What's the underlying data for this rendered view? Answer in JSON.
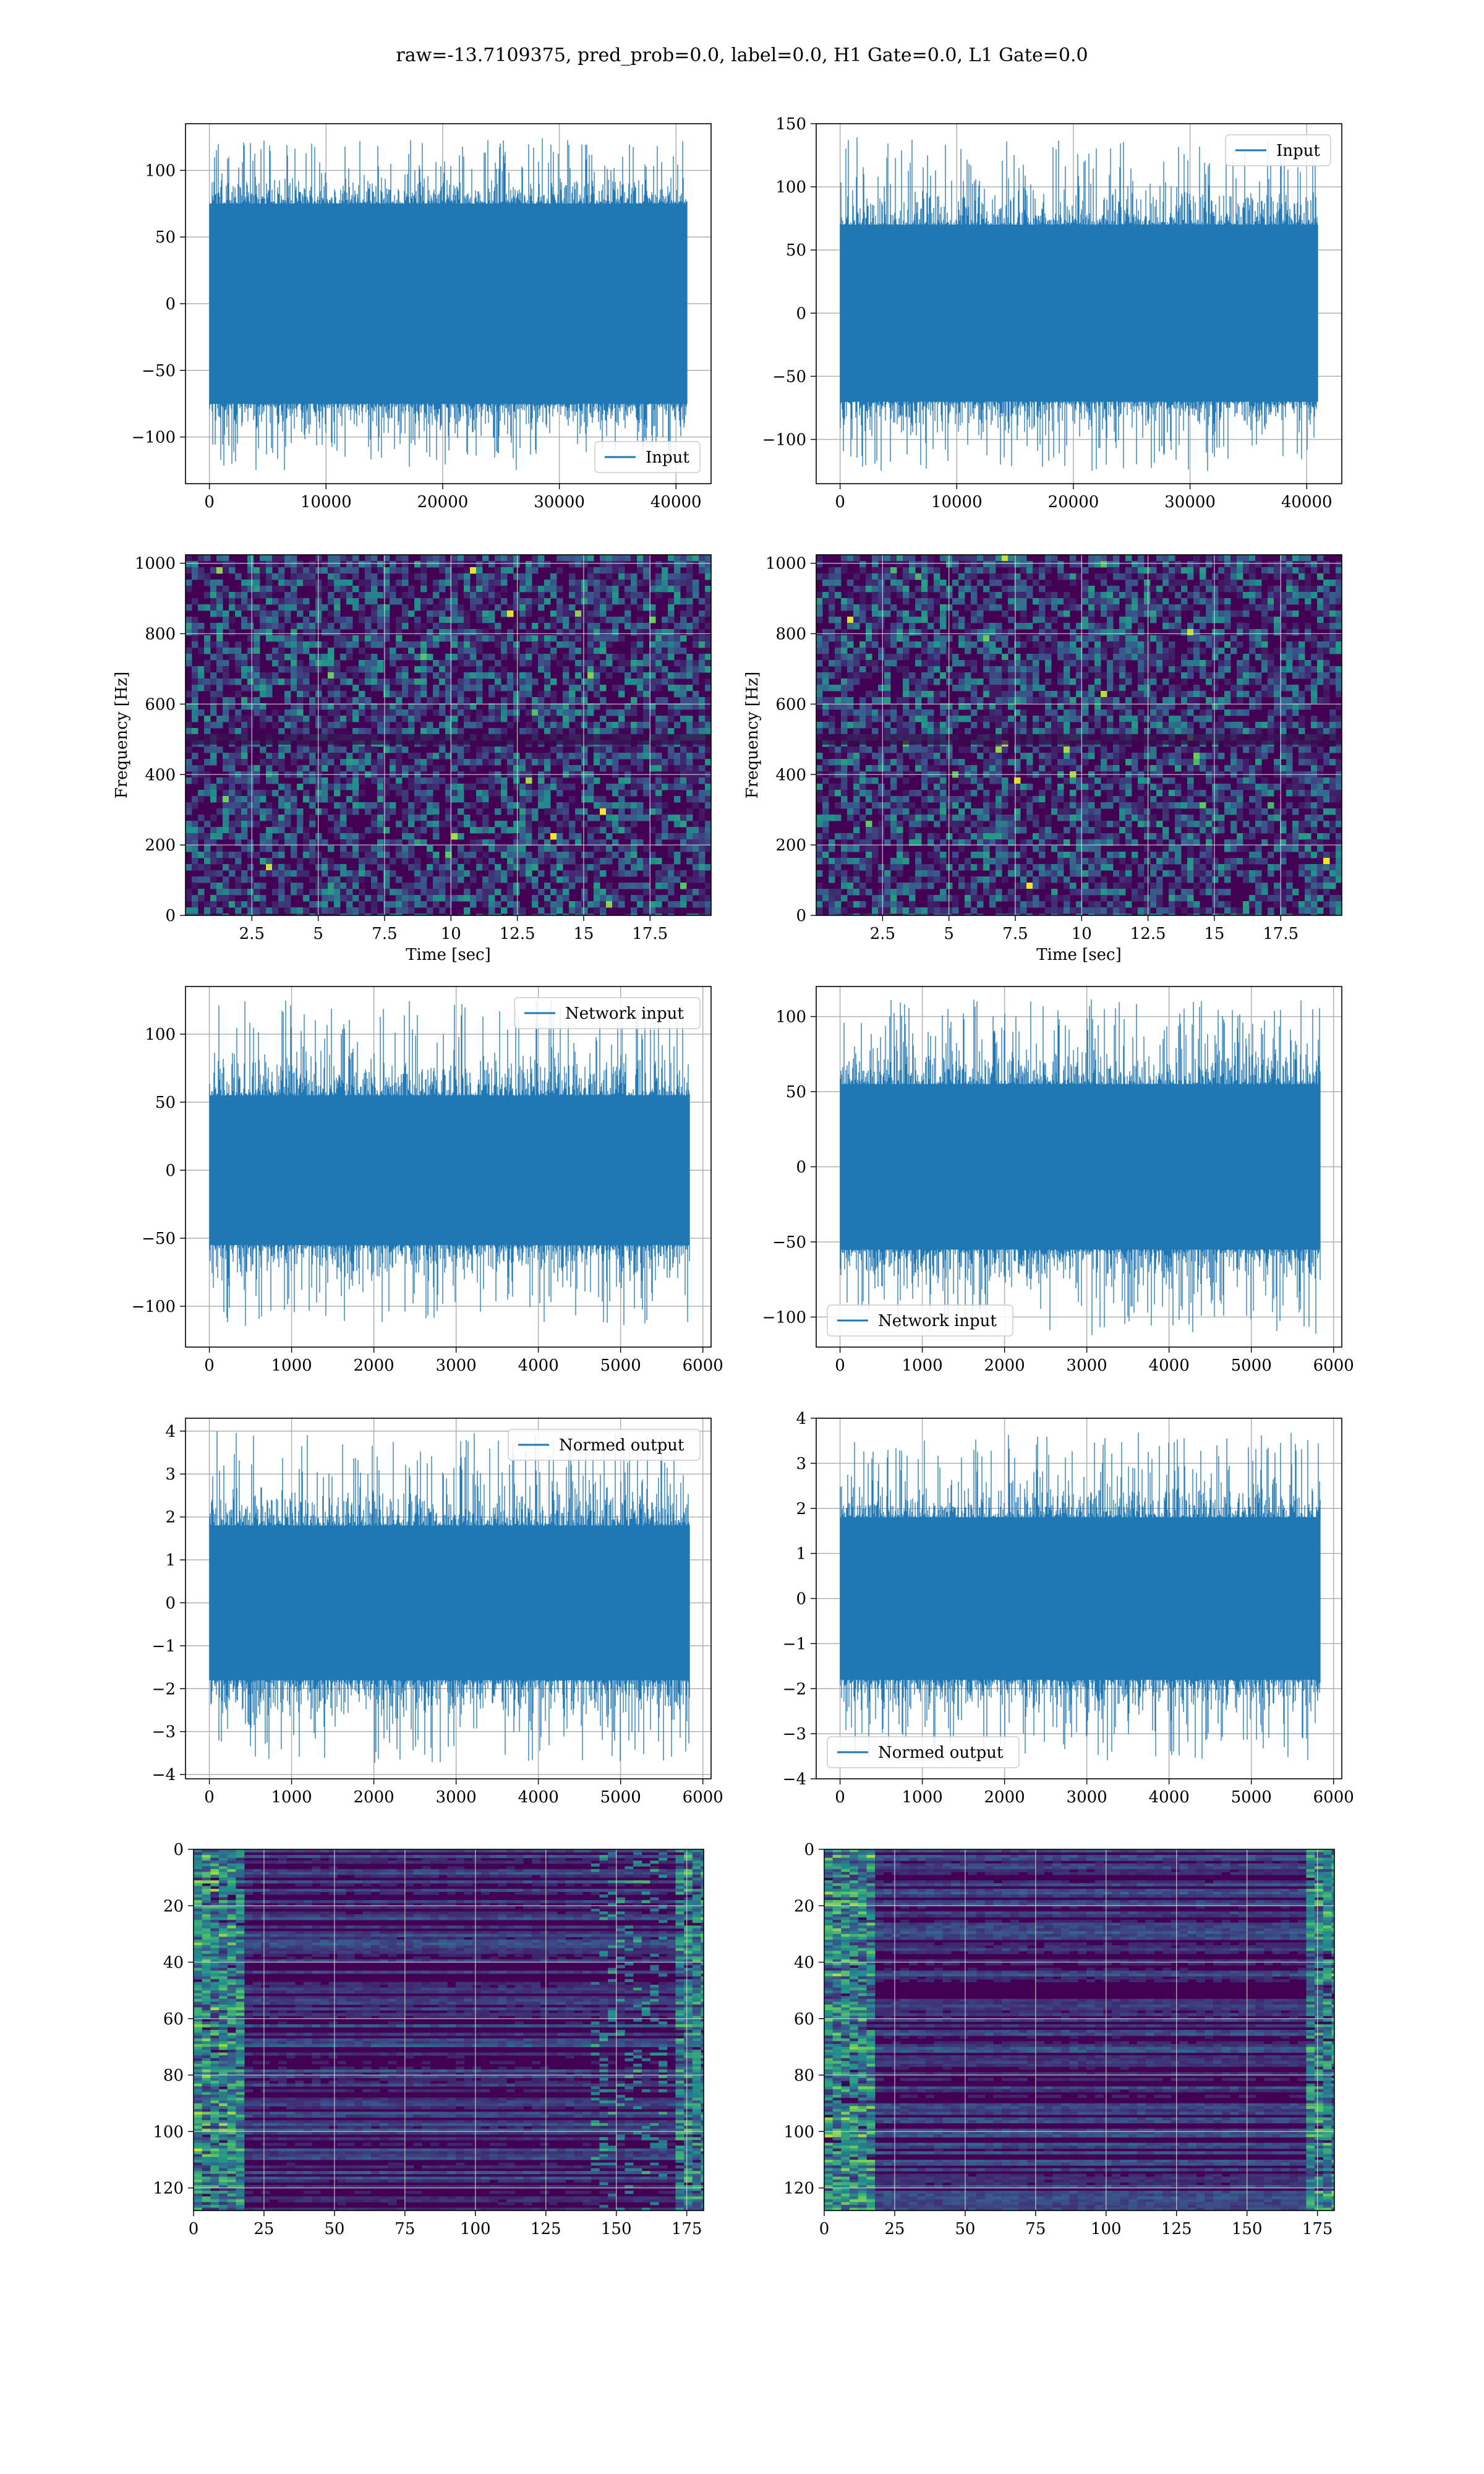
{
  "figure": {
    "suptitle": "raw=-13.7109375, pred_prob=0.0, label=0.0, H1 Gate=0.0, L1 Gate=0.0",
    "colors": {
      "line": "#1f77b4",
      "spec_base": "#440154",
      "grid": "#b0b0b0"
    }
  },
  "chart_data": [
    {
      "type": "line",
      "title": "",
      "xlabel": "",
      "ylabel": "",
      "xlim": [
        -2048,
        43008
      ],
      "ylim": [
        -135,
        135
      ],
      "xticks": [
        0,
        10000,
        20000,
        30000,
        40000
      ],
      "yticks": [
        -100,
        -50,
        0,
        50,
        100
      ],
      "series": [
        {
          "name": "Input",
          "n": 40960,
          "core_range": [
            -75,
            75
          ],
          "extreme_range": [
            -125,
            125
          ]
        }
      ],
      "legend": "lower right",
      "grid": true
    },
    {
      "type": "line",
      "title": "",
      "xlabel": "",
      "ylabel": "",
      "xlim": [
        -2048,
        43008
      ],
      "ylim": [
        -135,
        150
      ],
      "xticks": [
        0,
        10000,
        20000,
        30000,
        40000
      ],
      "yticks": [
        -100,
        -50,
        0,
        50,
        100,
        150
      ],
      "series": [
        {
          "name": "Input",
          "n": 40960,
          "core_range": [
            -70,
            70
          ],
          "extreme_range": [
            -125,
            140
          ]
        }
      ],
      "legend": "upper right",
      "grid": true
    },
    {
      "type": "heatmap",
      "title": "",
      "xlabel": "Time [sec]",
      "ylabel": "Frequency [Hz]",
      "xlim": [
        0,
        19.8
      ],
      "ylim": [
        0,
        1024
      ],
      "xticks": [
        2.5,
        5.0,
        7.5,
        10.0,
        12.5,
        15.0,
        17.5
      ],
      "yticks": [
        0,
        200,
        400,
        600,
        800,
        1000
      ],
      "colormap": "viridis",
      "grid": true
    },
    {
      "type": "heatmap",
      "title": "",
      "xlabel": "Time [sec]",
      "ylabel": "Frequency [Hz]",
      "xlim": [
        0,
        19.8
      ],
      "ylim": [
        0,
        1024
      ],
      "xticks": [
        2.5,
        5.0,
        7.5,
        10.0,
        12.5,
        15.0,
        17.5
      ],
      "yticks": [
        0,
        200,
        400,
        600,
        800,
        1000
      ],
      "colormap": "viridis",
      "grid": true
    },
    {
      "type": "line",
      "title": "",
      "xlabel": "",
      "ylabel": "",
      "xlim": [
        -290,
        6100
      ],
      "ylim": [
        -130,
        135
      ],
      "xticks": [
        0,
        1000,
        2000,
        3000,
        4000,
        5000,
        6000
      ],
      "yticks": [
        -100,
        -50,
        0,
        50,
        100
      ],
      "series": [
        {
          "name": "Network input",
          "n": 5836,
          "core_range": [
            -55,
            55
          ],
          "extreme_range": [
            -115,
            125
          ]
        }
      ],
      "legend": "upper right",
      "grid": true
    },
    {
      "type": "line",
      "title": "",
      "xlabel": "",
      "ylabel": "",
      "xlim": [
        -290,
        6100
      ],
      "ylim": [
        -120,
        120
      ],
      "xticks": [
        0,
        1000,
        2000,
        3000,
        4000,
        5000,
        6000
      ],
      "yticks": [
        -100,
        -50,
        0,
        50,
        100
      ],
      "series": [
        {
          "name": "Network input",
          "n": 5836,
          "core_range": [
            -55,
            55
          ],
          "extreme_range": [
            -112,
            112
          ]
        }
      ],
      "legend": "lower left",
      "grid": true
    },
    {
      "type": "line",
      "title": "",
      "xlabel": "",
      "ylabel": "",
      "xlim": [
        -290,
        6100
      ],
      "ylim": [
        -4.1,
        4.3
      ],
      "xticks": [
        0,
        1000,
        2000,
        3000,
        4000,
        5000,
        6000
      ],
      "yticks": [
        -4,
        -3,
        -2,
        -1,
        0,
        1,
        2,
        3,
        4
      ],
      "series": [
        {
          "name": "Normed output",
          "n": 5836,
          "core_range": [
            -1.8,
            1.8
          ],
          "extreme_range": [
            -3.8,
            4.0
          ]
        }
      ],
      "legend": "upper right",
      "grid": true
    },
    {
      "type": "line",
      "title": "",
      "xlabel": "",
      "ylabel": "",
      "xlim": [
        -290,
        6100
      ],
      "ylim": [
        -4.0,
        4.0
      ],
      "xticks": [
        0,
        1000,
        2000,
        3000,
        4000,
        5000,
        6000
      ],
      "yticks": [
        -4,
        -3,
        -2,
        -1,
        0,
        1,
        2,
        3,
        4
      ],
      "series": [
        {
          "name": "Normed output",
          "n": 5836,
          "core_range": [
            -1.8,
            1.8
          ],
          "extreme_range": [
            -3.6,
            3.7
          ]
        }
      ],
      "legend": "lower left",
      "grid": true
    },
    {
      "type": "heatmap",
      "title": "",
      "xlabel": "",
      "ylabel": "",
      "xlim": [
        0,
        181
      ],
      "ylim": [
        128,
        0
      ],
      "xticks": [
        0,
        25,
        50,
        75,
        100,
        125,
        150,
        175
      ],
      "yticks": [
        0,
        20,
        40,
        60,
        80,
        100,
        120
      ],
      "colormap": "viridis",
      "grid": true
    },
    {
      "type": "heatmap",
      "title": "",
      "xlabel": "",
      "ylabel": "",
      "xlim": [
        0,
        181
      ],
      "ylim": [
        128,
        0
      ],
      "xticks": [
        0,
        25,
        50,
        75,
        100,
        125,
        150,
        175
      ],
      "yticks": [
        0,
        20,
        40,
        60,
        80,
        100,
        120
      ],
      "colormap": "viridis",
      "grid": true
    }
  ]
}
